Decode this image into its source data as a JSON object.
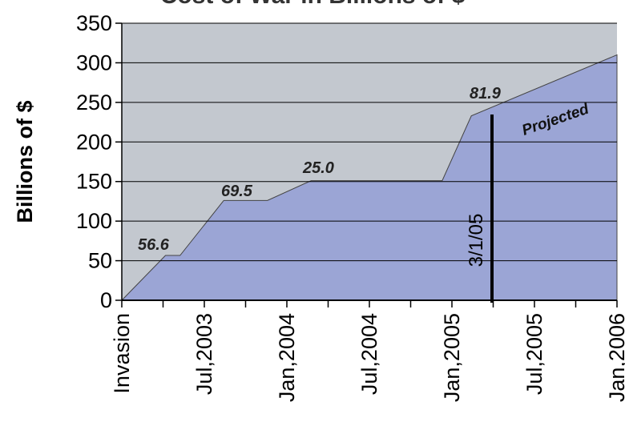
{
  "chart_data": {
    "type": "area",
    "title": "Cost of War in Billions of $",
    "ylabel": "Billions of $",
    "xlabel": "",
    "ylim": [
      0,
      350
    ],
    "yticks": [
      0,
      50,
      100,
      150,
      200,
      250,
      300,
      350
    ],
    "x_tick_labels": [
      "Invasion",
      "Jul,2003",
      "Jan,2004",
      "Jul,2004",
      "Jan,2005",
      "Jul,2005",
      "Jan,2006"
    ],
    "grid": true,
    "colors": {
      "plot_background": "#c3c8cf",
      "area_fill": "#9ba5d5",
      "gridline": "#000000",
      "marker_line": "#000000"
    },
    "series": [
      {
        "x": [
          "Mar 2003",
          "Jun 2003",
          "Jul 2003",
          "Oct 2003",
          "Jan 2004",
          "Apr 2004",
          "Jan 2005",
          "Mar 2005",
          "Jan 2006"
        ],
        "values": [
          0,
          56.6,
          56.6,
          126.1,
          126.1,
          151.1,
          151.1,
          233.0,
          310
        ]
      }
    ],
    "data_labels": [
      "56.6",
      "69.5",
      "25.0",
      "81.9"
    ],
    "annotations": [
      "3/1/05",
      "Projected"
    ]
  }
}
